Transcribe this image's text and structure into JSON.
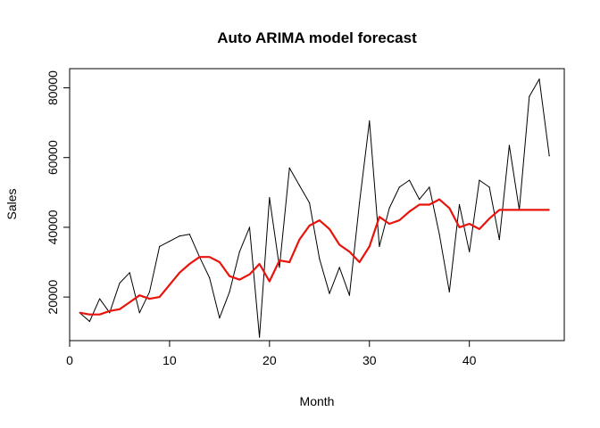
{
  "chart_data": {
    "type": "line",
    "title": "Auto ARIMA model forecast",
    "xlabel": "Month",
    "ylabel": "Sales",
    "xlim": [
      0,
      49.5
    ],
    "ylim": [
      7500,
      85500
    ],
    "xticks": [
      0,
      10,
      20,
      30,
      40
    ],
    "yticks": [
      20000,
      40000,
      60000,
      80000
    ],
    "grid": false,
    "legend": "none",
    "series": [
      {
        "color": "#000000",
        "line_width": 1,
        "x": [
          1,
          2,
          3,
          4,
          5,
          6,
          7,
          8,
          9,
          10,
          11,
          12,
          13,
          14,
          15,
          16,
          17,
          18,
          19,
          20,
          21,
          22,
          23,
          24,
          25,
          26,
          27,
          28,
          29,
          30,
          31,
          32,
          33,
          34,
          35,
          36,
          37,
          38,
          39,
          40,
          41,
          42,
          43,
          44,
          45,
          46,
          47,
          48
        ],
        "values": [
          15500,
          13000,
          19500,
          15500,
          24000,
          27000,
          15500,
          21500,
          34500,
          36000,
          37500,
          38000,
          31500,
          25500,
          14000,
          21500,
          33000,
          40000,
          8500,
          48500,
          28500,
          57000,
          52000,
          47000,
          31000,
          21000,
          28500,
          20500,
          47000,
          70500,
          34500,
          45500,
          51500,
          53500,
          48000,
          51500,
          38000,
          21500,
          46500,
          33000,
          53500,
          51500,
          36500,
          63500,
          45000,
          77500,
          82500,
          60500
        ]
      },
      {
        "color": "#e8140c",
        "line_width": 2.2,
        "x": [
          1,
          2,
          3,
          4,
          5,
          6,
          7,
          8,
          9,
          10,
          11,
          12,
          13,
          14,
          15,
          16,
          17,
          18,
          19,
          20,
          21,
          22,
          23,
          24,
          25,
          26,
          27,
          28,
          29,
          30,
          31,
          32,
          33,
          34,
          35,
          36,
          37,
          38,
          39,
          40,
          41,
          42,
          43,
          44,
          45,
          46,
          47,
          48
        ],
        "values": [
          15500,
          15000,
          15000,
          16000,
          16500,
          18500,
          20500,
          19500,
          20000,
          23500,
          27000,
          29500,
          31500,
          31500,
          30000,
          26000,
          25000,
          26500,
          29500,
          24500,
          30500,
          30000,
          36500,
          40500,
          42000,
          39500,
          35000,
          33000,
          30000,
          34500,
          43000,
          41000,
          42000,
          44500,
          46500,
          46500,
          48000,
          45500,
          40000,
          41000,
          39500,
          42500,
          45000,
          45000,
          45000,
          45000,
          45000,
          45000
        ]
      }
    ]
  }
}
